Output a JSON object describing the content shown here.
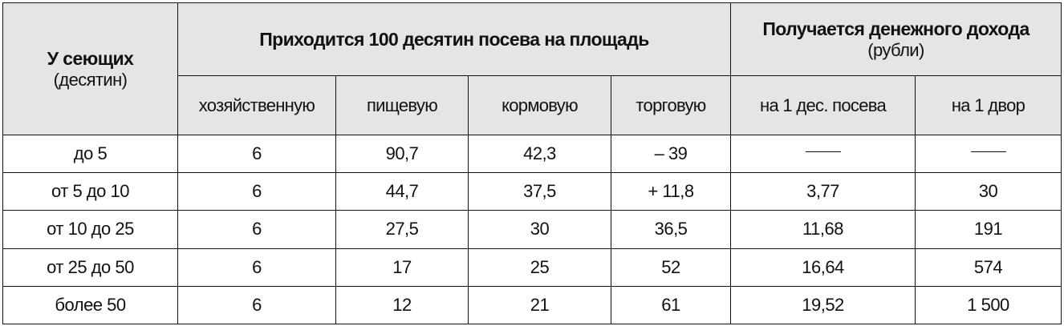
{
  "table": {
    "header": {
      "first": {
        "title": "У сеющих",
        "subtitle": "(десятин)"
      },
      "group_sowing": {
        "title": "Приходится 100 десятин посева на площадь"
      },
      "group_income": {
        "title": "Получается денежного дохода",
        "subtitle": "(рубли)"
      },
      "columns": [
        "хозяйственную",
        "пищевую",
        "кормовую",
        "торговую",
        "на 1 дес. посева",
        "на 1 двор"
      ]
    },
    "rows": [
      {
        "label": "до 5",
        "cells": [
          "6",
          "90,7",
          "42,3",
          "– 39",
          "—",
          "—"
        ]
      },
      {
        "label": "от 5 до 10",
        "cells": [
          "6",
          "44,7",
          "37,5",
          "+ 11,8",
          "3,77",
          "30"
        ]
      },
      {
        "label": "от 10 до 25",
        "cells": [
          "6",
          "27,5",
          "30",
          "36,5",
          "11,68",
          "191"
        ]
      },
      {
        "label": "от 25 до 50",
        "cells": [
          "6",
          "17",
          "25",
          "52",
          "16,64",
          "574"
        ]
      },
      {
        "label": "более 50",
        "cells": [
          "6",
          "12",
          "21",
          "61",
          "19,52",
          "1 500"
        ]
      }
    ]
  }
}
